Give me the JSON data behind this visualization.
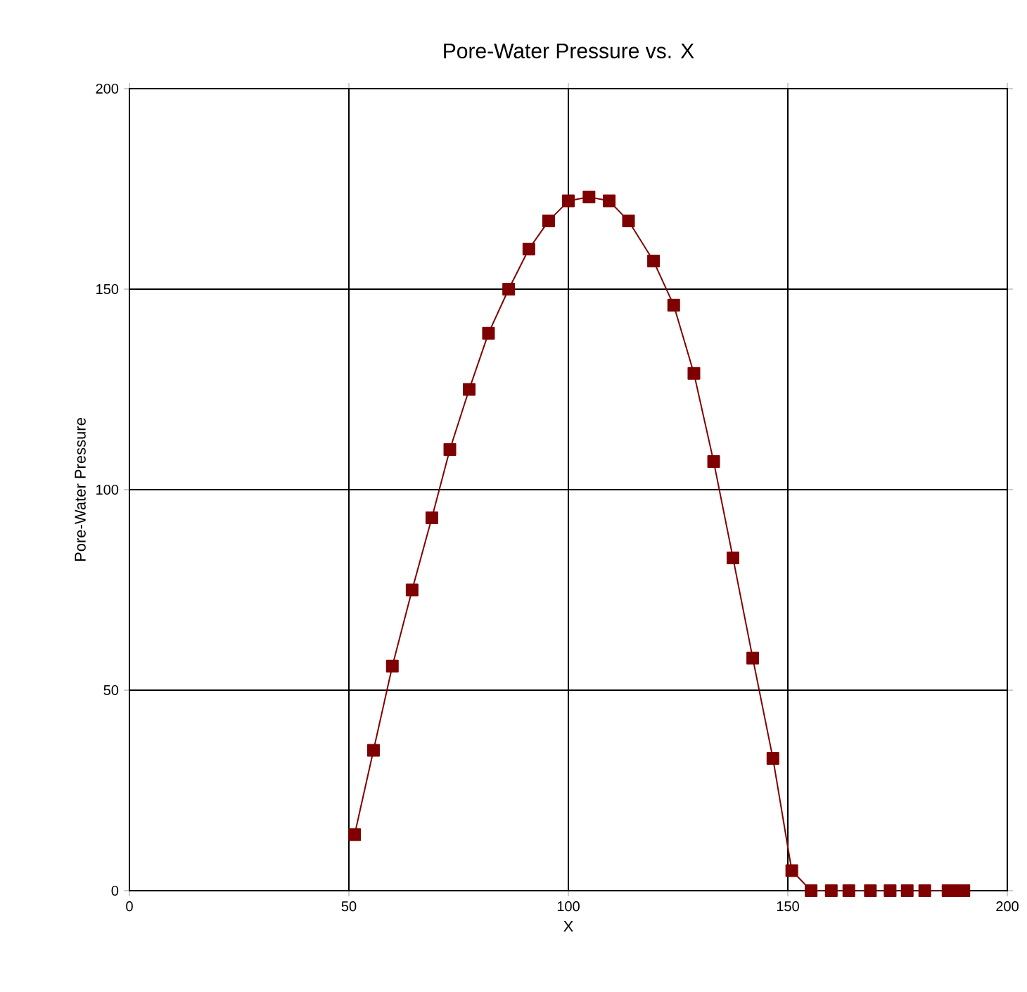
{
  "chart_data": {
    "type": "line",
    "title": "Pore-Water Pressure vs. X",
    "xlabel": "X",
    "ylabel": "Pore-Water Pressure",
    "xlim": [
      0,
      200
    ],
    "ylim": [
      0,
      200
    ],
    "xticks": [
      0,
      50,
      100,
      150,
      200
    ],
    "yticks": [
      0,
      50,
      100,
      150,
      200
    ],
    "grid": true,
    "marker": "square",
    "line_style": "solid",
    "series": [
      {
        "color": "#7f0000",
        "x": [
          51.3,
          55.6,
          59.9,
          64.4,
          68.9,
          73,
          77.4,
          81.8,
          86.4,
          91,
          95.5,
          100,
          104.7,
          109.3,
          113.7,
          119.4,
          124,
          128.6,
          133.1,
          137.5,
          142,
          146.6,
          150.9,
          155.3,
          159.9,
          163.9,
          168.8,
          173.3,
          177.2,
          181.2,
          186.5,
          188.5,
          190.1
        ],
        "values": [
          14,
          35,
          56,
          75,
          93,
          110,
          125,
          139,
          150,
          160,
          167,
          172,
          173,
          172,
          167,
          157,
          146,
          129,
          107,
          83,
          58,
          33,
          5,
          0,
          0,
          0,
          0,
          0,
          0,
          0,
          0,
          0,
          0
        ]
      }
    ]
  }
}
